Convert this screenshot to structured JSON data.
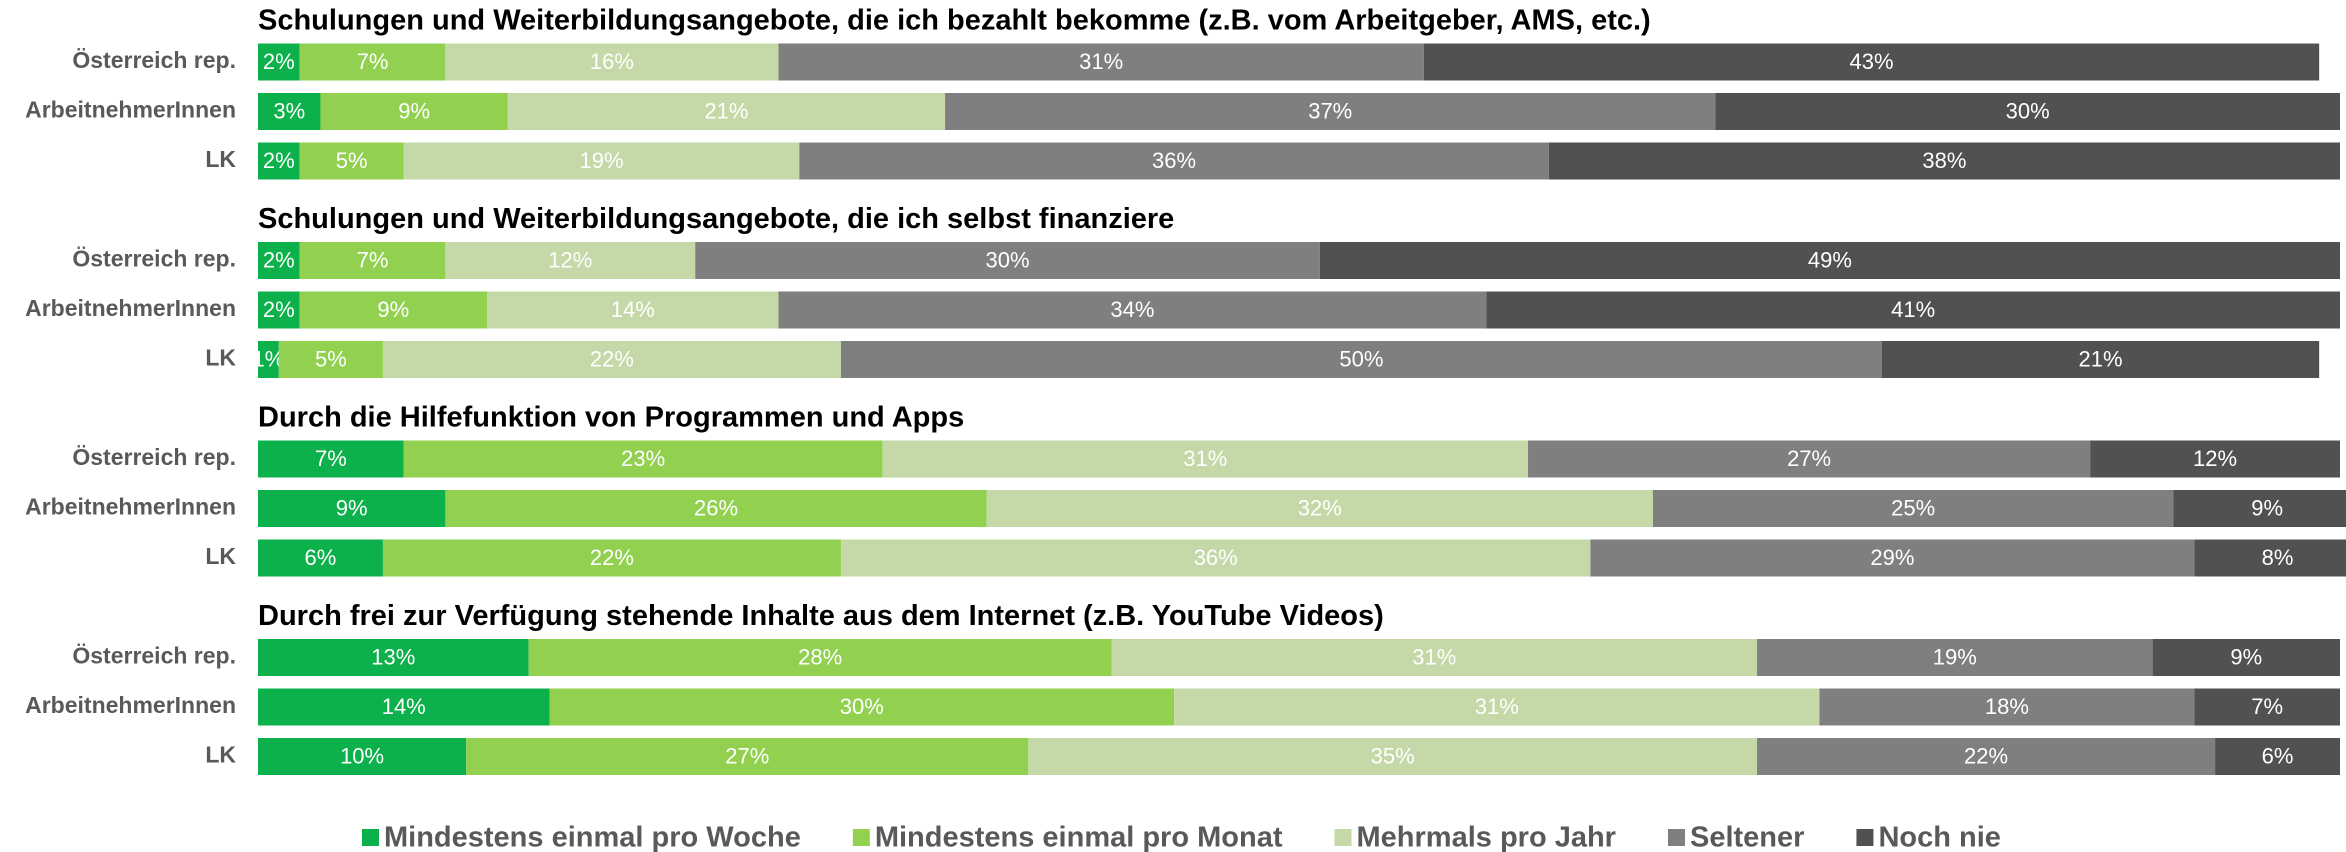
{
  "chart_data": [
    {
      "type": "bar",
      "orientation": "horizontal",
      "stacked": true,
      "title": "Schulungen und Weiterbildungsangebote, die ich bezahlt bekomme (z.B. vom Arbeitgeber, AMS, etc.)",
      "categories": [
        "Österreich rep.",
        "ArbeitnehmerInnen",
        "LK"
      ],
      "xlim": [
        0,
        100
      ],
      "legend": "bottom",
      "series": [
        {
          "name": "Mindestens einmal pro Woche",
          "color": "#0db14b",
          "values": [
            2,
            3,
            2
          ],
          "value_labels": [
            "2%",
            "3%",
            "2%"
          ]
        },
        {
          "name": "Mindestens einmal pro Monat",
          "color": "#92d050",
          "values": [
            7,
            9,
            5
          ],
          "value_labels": [
            "7%",
            "9%",
            "5%"
          ]
        },
        {
          "name": "Mehrmals pro Jahr",
          "color": "#c5d9a8",
          "values": [
            16,
            21,
            19
          ],
          "value_labels": [
            "16%",
            "21%",
            "19%"
          ]
        },
        {
          "name": "Seltener",
          "color": "#7f7f7f",
          "values": [
            31,
            37,
            36
          ],
          "value_labels": [
            "31%",
            "37%",
            "36%"
          ]
        },
        {
          "name": "Noch nie",
          "color": "#515151",
          "values": [
            43,
            30,
            38
          ],
          "value_labels": [
            "43%",
            "30%",
            "38%"
          ]
        }
      ]
    },
    {
      "type": "bar",
      "orientation": "horizontal",
      "stacked": true,
      "title": "Schulungen und Weiterbildungsangebote, die ich selbst finanziere",
      "categories": [
        "Österreich rep.",
        "ArbeitnehmerInnen",
        "LK"
      ],
      "xlim": [
        0,
        100
      ],
      "series": [
        {
          "name": "Mindestens einmal pro Woche",
          "color": "#0db14b",
          "values": [
            2,
            2,
            1
          ],
          "value_labels": [
            "2%",
            "2%",
            "1%"
          ]
        },
        {
          "name": "Mindestens einmal pro Monat",
          "color": "#92d050",
          "values": [
            7,
            9,
            5
          ],
          "value_labels": [
            "7%",
            "9%",
            "5%"
          ]
        },
        {
          "name": "Mehrmals pro Jahr",
          "color": "#c5d9a8",
          "values": [
            12,
            14,
            22
          ],
          "value_labels": [
            "12%",
            "14%",
            "22%"
          ]
        },
        {
          "name": "Seltener",
          "color": "#7f7f7f",
          "values": [
            30,
            34,
            50
          ],
          "value_labels": [
            "30%",
            "34%",
            "50%"
          ]
        },
        {
          "name": "Noch nie",
          "color": "#515151",
          "values": [
            49,
            41,
            21
          ],
          "value_labels": [
            "49%",
            "41%",
            "21%"
          ]
        }
      ]
    },
    {
      "type": "bar",
      "orientation": "horizontal",
      "stacked": true,
      "title": "Durch die Hilfefunktion von Programmen und Apps",
      "categories": [
        "Österreich rep.",
        "ArbeitnehmerInnen",
        "LK"
      ],
      "xlim": [
        0,
        100
      ],
      "series": [
        {
          "name": "Mindestens einmal pro Woche",
          "color": "#0db14b",
          "values": [
            7,
            9,
            6
          ],
          "value_labels": [
            "7%",
            "9%",
            "6%"
          ]
        },
        {
          "name": "Mindestens einmal pro Monat",
          "color": "#92d050",
          "values": [
            23,
            26,
            22
          ],
          "value_labels": [
            "23%",
            "26%",
            "22%"
          ]
        },
        {
          "name": "Mehrmals pro Jahr",
          "color": "#c5d9a8",
          "values": [
            31,
            32,
            36
          ],
          "value_labels": [
            "31%",
            "32%",
            "36%"
          ]
        },
        {
          "name": "Seltener",
          "color": "#7f7f7f",
          "values": [
            27,
            25,
            29
          ],
          "value_labels": [
            "27%",
            "25%",
            "29%"
          ]
        },
        {
          "name": "Noch nie",
          "color": "#515151",
          "values": [
            12,
            9,
            8
          ],
          "value_labels": [
            "12%",
            "9%",
            "8%"
          ]
        }
      ]
    },
    {
      "type": "bar",
      "orientation": "horizontal",
      "stacked": true,
      "title": "Durch frei zur Verfügung stehende Inhalte aus dem Internet (z.B. YouTube Videos)",
      "categories": [
        "Österreich rep.",
        "ArbeitnehmerInnen",
        "LK"
      ],
      "xlim": [
        0,
        100
      ],
      "series": [
        {
          "name": "Mindestens einmal pro Woche",
          "color": "#0db14b",
          "values": [
            13,
            14,
            10
          ],
          "value_labels": [
            "13%",
            "14%",
            "10%"
          ]
        },
        {
          "name": "Mindestens einmal pro Monat",
          "color": "#92d050",
          "values": [
            28,
            30,
            27
          ],
          "value_labels": [
            "28%",
            "30%",
            "27%"
          ]
        },
        {
          "name": "Mehrmals pro Jahr",
          "color": "#c5d9a8",
          "values": [
            31,
            31,
            35
          ],
          "value_labels": [
            "31%",
            "31%",
            "35%"
          ]
        },
        {
          "name": "Seltener",
          "color": "#7f7f7f",
          "values": [
            19,
            18,
            22
          ],
          "value_labels": [
            "19%",
            "18%",
            "22%"
          ]
        },
        {
          "name": "Noch nie",
          "color": "#515151",
          "values": [
            9,
            7,
            6
          ],
          "value_labels": [
            "9%",
            "7%",
            "6%"
          ]
        }
      ]
    }
  ]
}
